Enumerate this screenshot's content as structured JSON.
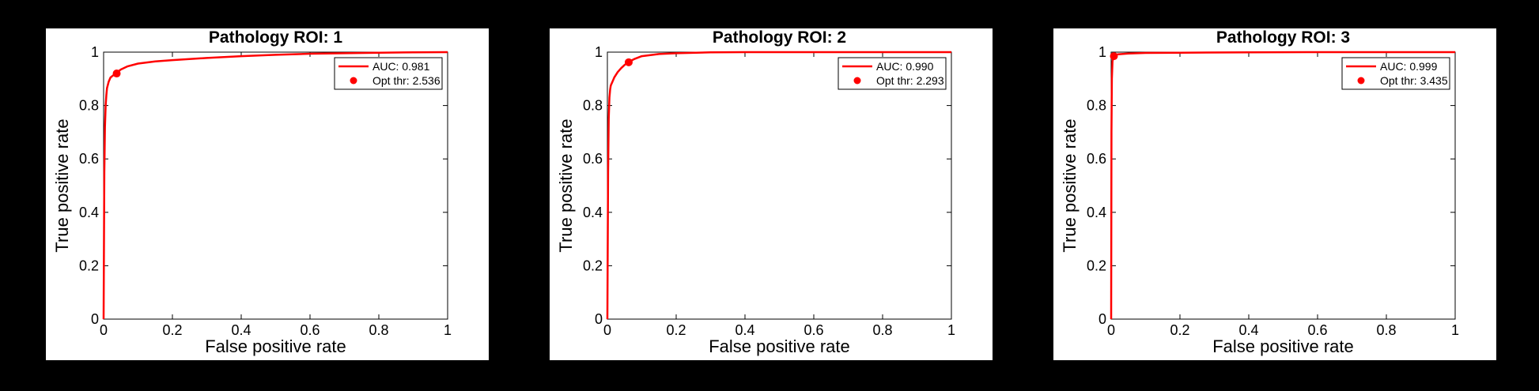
{
  "chart_data": [
    {
      "type": "line",
      "title": "Pathology ROI: 1",
      "xlabel": "False positive rate",
      "ylabel": "True positive rate",
      "xlim": [
        0,
        1
      ],
      "ylim": [
        0,
        1
      ],
      "xticks": [
        "0",
        "0.2",
        "0.4",
        "0.6",
        "0.8",
        "1"
      ],
      "yticks": [
        "0",
        "0.2",
        "0.4",
        "0.6",
        "0.8",
        "1"
      ],
      "grid": false,
      "legend_position": "top-right",
      "series": [
        {
          "name": "AUC: 0.981",
          "kind": "line",
          "color": "#ff0000",
          "x": [
            0,
            0.002,
            0.004,
            0.006,
            0.008,
            0.01,
            0.015,
            0.02,
            0.03,
            0.04,
            0.05,
            0.07,
            0.1,
            0.15,
            0.2,
            0.3,
            0.4,
            0.5,
            0.6,
            0.7,
            0.8,
            0.9,
            1.0
          ],
          "y": [
            0,
            0.55,
            0.72,
            0.8,
            0.84,
            0.865,
            0.89,
            0.905,
            0.915,
            0.925,
            0.935,
            0.947,
            0.957,
            0.965,
            0.97,
            0.978,
            0.985,
            0.99,
            0.994,
            0.996,
            0.998,
            0.999,
            1.0
          ]
        },
        {
          "name": "Opt thr: 2.536",
          "kind": "point",
          "color": "#ff0000",
          "x": [
            0.038
          ],
          "y": [
            0.92
          ]
        }
      ]
    },
    {
      "type": "line",
      "title": "Pathology ROI: 2",
      "xlabel": "False positive rate",
      "ylabel": "True positive rate",
      "xlim": [
        0,
        1
      ],
      "ylim": [
        0,
        1
      ],
      "xticks": [
        "0",
        "0.2",
        "0.4",
        "0.6",
        "0.8",
        "1"
      ],
      "yticks": [
        "0",
        "0.2",
        "0.4",
        "0.6",
        "0.8",
        "1"
      ],
      "grid": false,
      "legend_position": "top-right",
      "series": [
        {
          "name": "AUC: 0.990",
          "kind": "line",
          "color": "#ff0000",
          "x": [
            0,
            0.002,
            0.004,
            0.006,
            0.008,
            0.01,
            0.015,
            0.02,
            0.03,
            0.04,
            0.05,
            0.06,
            0.08,
            0.1,
            0.15,
            0.2,
            0.3,
            0.4,
            0.6,
            0.8,
            1.0
          ],
          "y": [
            0,
            0.55,
            0.75,
            0.83,
            0.86,
            0.875,
            0.89,
            0.905,
            0.925,
            0.94,
            0.952,
            0.962,
            0.975,
            0.985,
            0.993,
            0.996,
            0.999,
            1.0,
            1.0,
            1.0,
            1.0
          ]
        },
        {
          "name": "Opt thr: 2.293",
          "kind": "point",
          "color": "#ff0000",
          "x": [
            0.062
          ],
          "y": [
            0.962
          ]
        }
      ]
    },
    {
      "type": "line",
      "title": "Pathology ROI: 3",
      "xlabel": "False positive rate",
      "ylabel": "True positive rate",
      "xlim": [
        0,
        1
      ],
      "ylim": [
        0,
        1
      ],
      "xticks": [
        "0",
        "0.2",
        "0.4",
        "0.6",
        "0.8",
        "1"
      ],
      "yticks": [
        "0",
        "0.2",
        "0.4",
        "0.6",
        "0.8",
        "1"
      ],
      "grid": false,
      "legend_position": "top-right",
      "series": [
        {
          "name": "AUC: 0.999",
          "kind": "line",
          "color": "#ff0000",
          "x": [
            0,
            0.001,
            0.002,
            0.004,
            0.006,
            0.008,
            0.01,
            0.02,
            0.05,
            0.1,
            0.2,
            0.4,
            0.6,
            0.8,
            1.0
          ],
          "y": [
            0,
            0.7,
            0.9,
            0.965,
            0.98,
            0.985,
            0.988,
            0.992,
            0.995,
            0.997,
            0.998,
            0.999,
            1.0,
            1.0,
            1.0
          ]
        },
        {
          "name": "Opt thr: 3.435",
          "kind": "point",
          "color": "#ff0000",
          "x": [
            0.008
          ],
          "y": [
            0.985
          ]
        }
      ]
    }
  ]
}
